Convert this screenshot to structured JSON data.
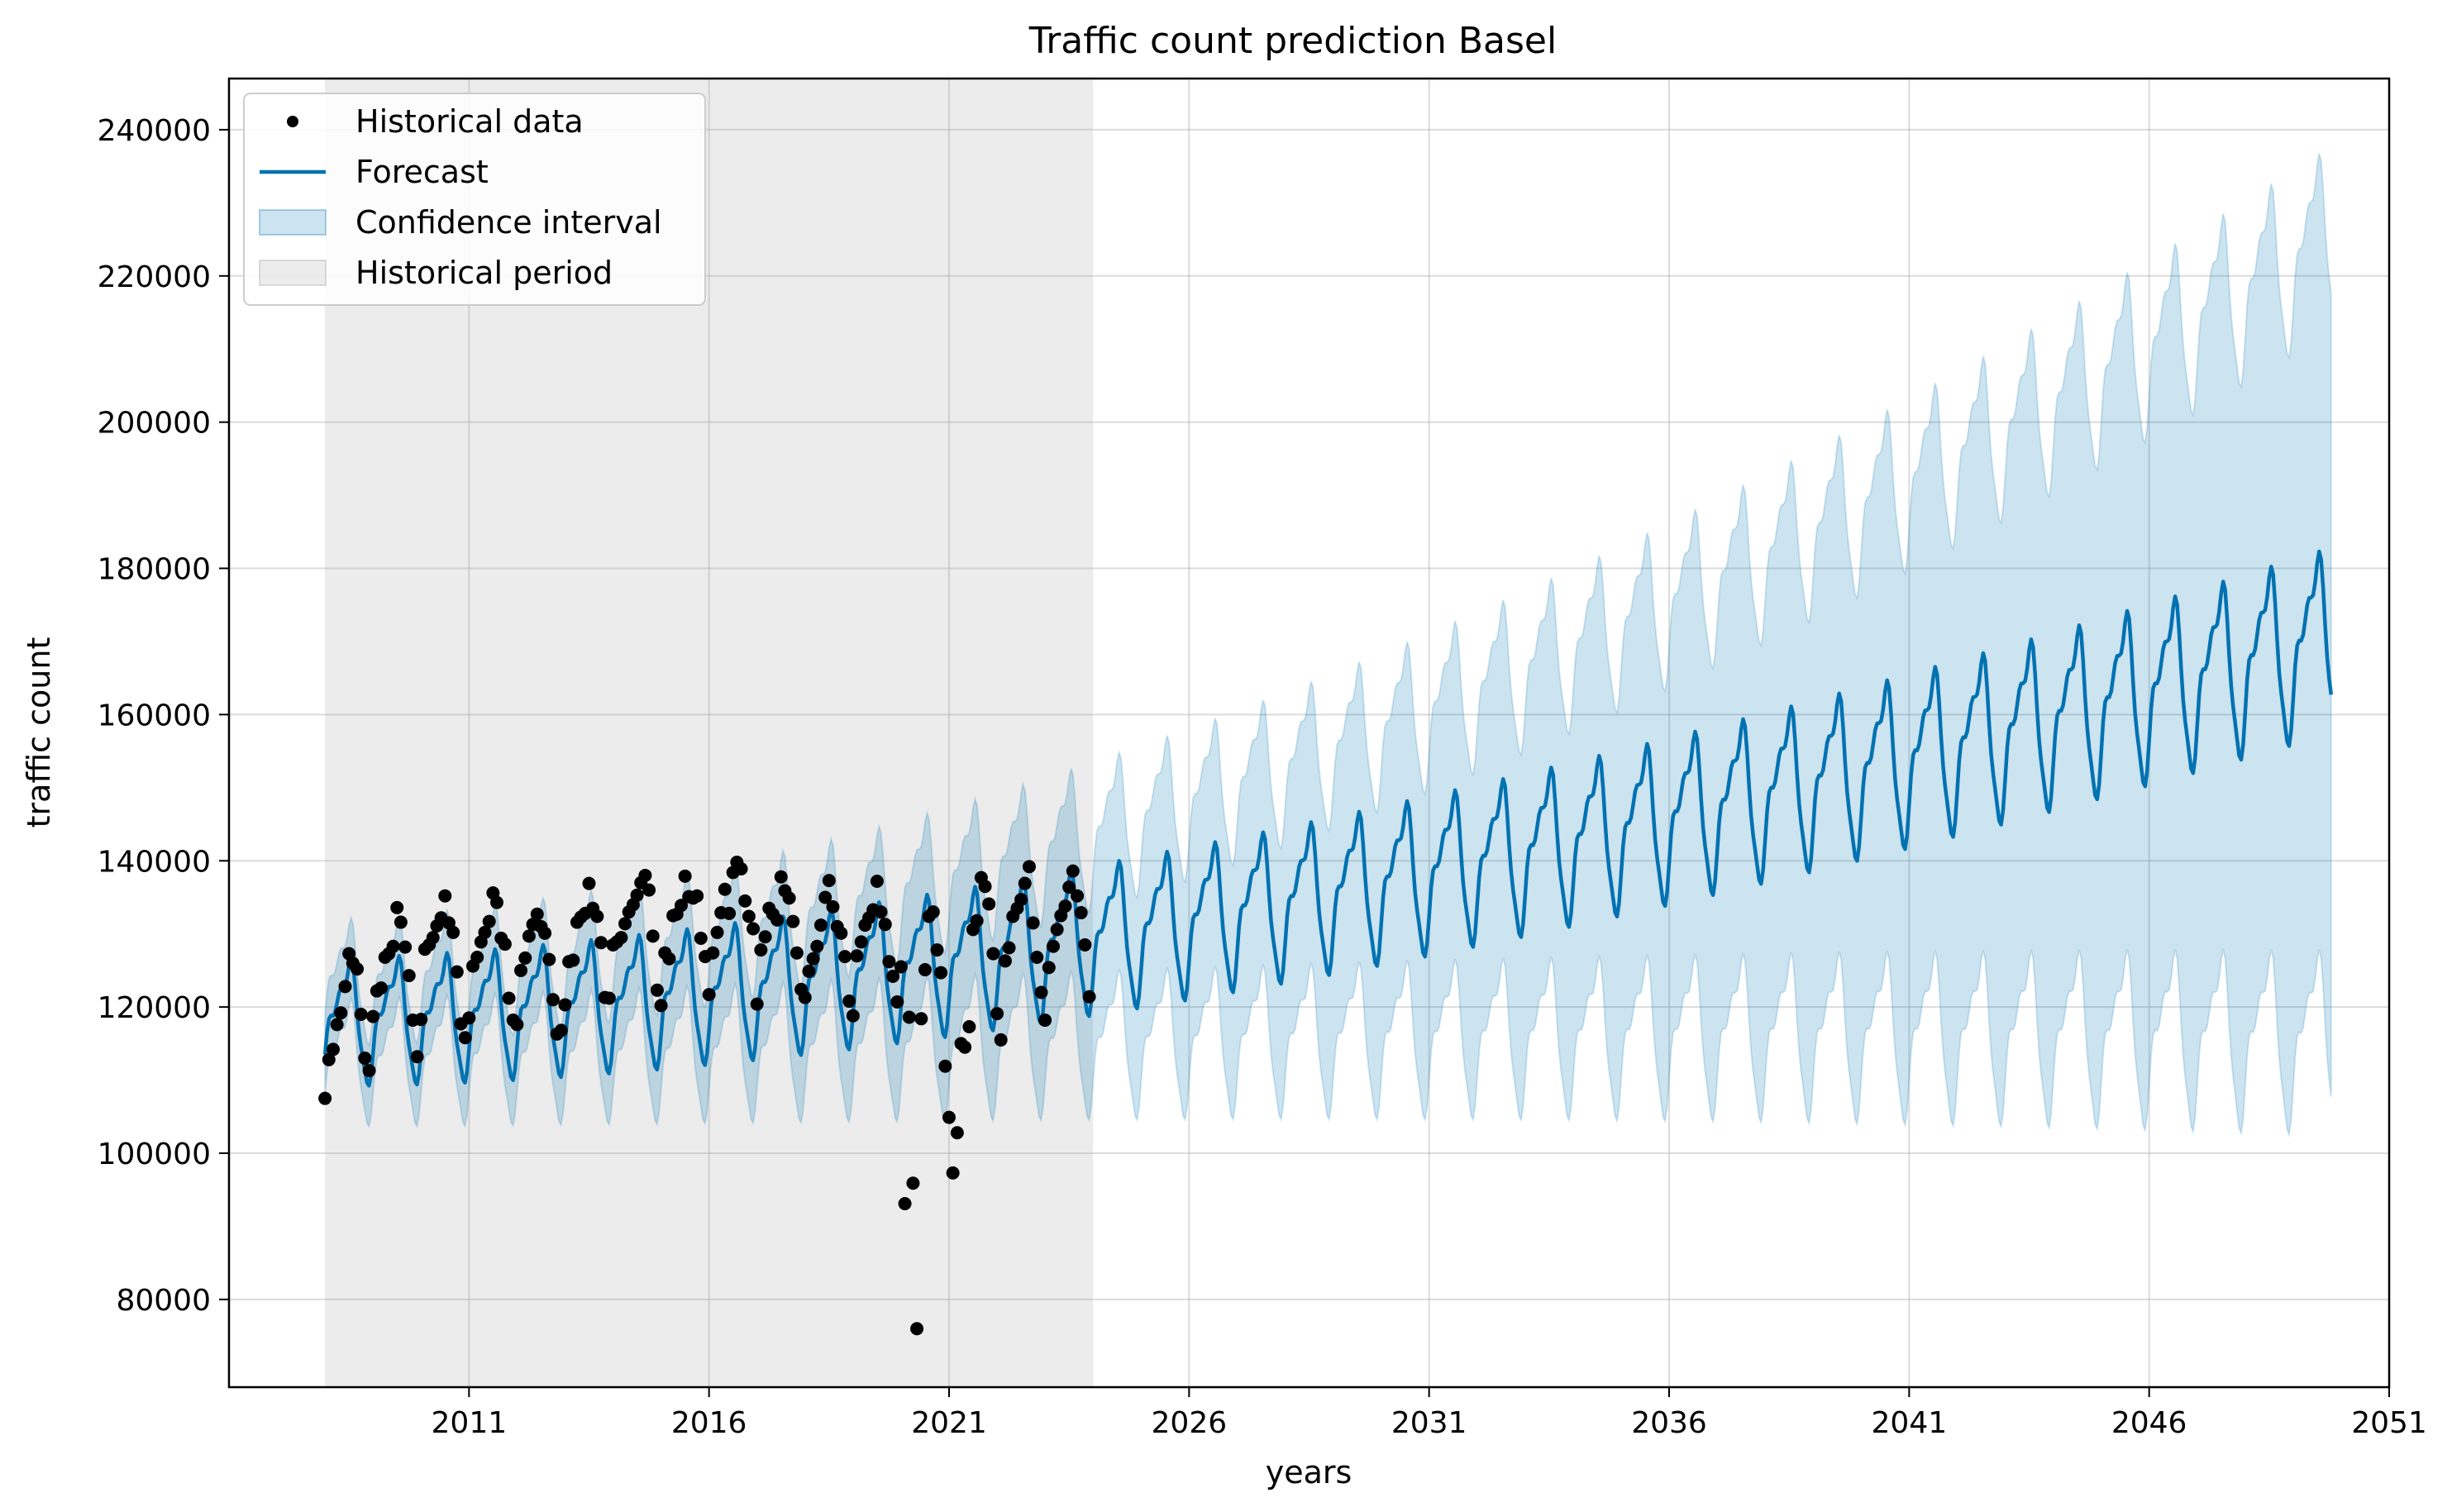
{
  "chart_data": {
    "type": "line",
    "title": "Traffic count prediction Basel",
    "xlabel": "years",
    "ylabel": "traffic count",
    "xlim": [
      2006.0,
      2051.0
    ],
    "ylim": [
      68000,
      247000
    ],
    "x_ticks": [
      2011,
      2016,
      2021,
      2026,
      2031,
      2036,
      2041,
      2046,
      2051
    ],
    "x_tick_labels": [
      "2011",
      "2016",
      "2021",
      "2026",
      "2031",
      "2036",
      "2041",
      "2046",
      "2051"
    ],
    "y_ticks": [
      80000,
      100000,
      120000,
      140000,
      160000,
      180000,
      200000,
      220000,
      240000
    ],
    "y_tick_labels": [
      "80000",
      "100000",
      "120000",
      "140000",
      "160000",
      "180000",
      "200000",
      "220000",
      "240000"
    ],
    "grid": true,
    "legend_position": "top-left",
    "historical_period": [
      2008.0,
      2024.0
    ],
    "forecast_range": [
      2008.0,
      2049.8
    ],
    "forecast_model": {
      "level_start": 118500,
      "level_end": 171000,
      "start_year": 2008.0,
      "end_year": 2049.8,
      "curve_exponent": 1.6,
      "seasonal_amplitude_start": 7500,
      "seasonal_amplitude_end": 11000,
      "interval_halfwidth_start": 5500,
      "interval_halfwidth_end": 55000
    },
    "series": [
      {
        "name": "Historical data",
        "kind": "scatter",
        "color": "#000000",
        "points": [
          [
            2008.0,
            107500
          ],
          [
            2008.08,
            112800
          ],
          [
            2008.17,
            114200
          ],
          [
            2008.25,
            117600
          ],
          [
            2008.33,
            119200
          ],
          [
            2008.42,
            122800
          ],
          [
            2008.5,
            127300
          ],
          [
            2008.58,
            126000
          ],
          [
            2008.67,
            125200
          ],
          [
            2008.75,
            119000
          ],
          [
            2008.83,
            113000
          ],
          [
            2008.92,
            111300
          ],
          [
            2009.0,
            118700
          ],
          [
            2009.08,
            122200
          ],
          [
            2009.17,
            122600
          ],
          [
            2009.25,
            126800
          ],
          [
            2009.33,
            127300
          ],
          [
            2009.42,
            128300
          ],
          [
            2009.5,
            133600
          ],
          [
            2009.58,
            131600
          ],
          [
            2009.67,
            128200
          ],
          [
            2009.75,
            124300
          ],
          [
            2009.83,
            118200
          ],
          [
            2009.92,
            113200
          ],
          [
            2010.0,
            118300
          ],
          [
            2010.08,
            127900
          ],
          [
            2010.17,
            128500
          ],
          [
            2010.25,
            129500
          ],
          [
            2010.33,
            131100
          ],
          [
            2010.42,
            132200
          ],
          [
            2010.5,
            135200
          ],
          [
            2010.58,
            131500
          ],
          [
            2010.67,
            130200
          ],
          [
            2010.75,
            124800
          ],
          [
            2010.83,
            117700
          ],
          [
            2010.92,
            115800
          ],
          [
            2011.0,
            118500
          ],
          [
            2011.08,
            125600
          ],
          [
            2011.17,
            126800
          ],
          [
            2011.25,
            128900
          ],
          [
            2011.33,
            130200
          ],
          [
            2011.42,
            131700
          ],
          [
            2011.5,
            135600
          ],
          [
            2011.58,
            134300
          ],
          [
            2011.67,
            129400
          ],
          [
            2011.75,
            128600
          ],
          [
            2011.83,
            121200
          ],
          [
            2011.92,
            118200
          ],
          [
            2012.0,
            117600
          ],
          [
            2012.08,
            125000
          ],
          [
            2012.17,
            126700
          ],
          [
            2012.25,
            129700
          ],
          [
            2012.33,
            131300
          ],
          [
            2012.42,
            132700
          ],
          [
            2012.5,
            131000
          ],
          [
            2012.58,
            130100
          ],
          [
            2012.67,
            126500
          ],
          [
            2012.75,
            121000
          ],
          [
            2012.83,
            116300
          ],
          [
            2012.92,
            116800
          ],
          [
            2013.0,
            120300
          ],
          [
            2013.08,
            126200
          ],
          [
            2013.17,
            126400
          ],
          [
            2013.25,
            131600
          ],
          [
            2013.33,
            132300
          ],
          [
            2013.42,
            132800
          ],
          [
            2013.5,
            136900
          ],
          [
            2013.58,
            133500
          ],
          [
            2013.67,
            132400
          ],
          [
            2013.75,
            128800
          ],
          [
            2013.83,
            121300
          ],
          [
            2013.92,
            121200
          ],
          [
            2014.0,
            128500
          ],
          [
            2014.08,
            128900
          ],
          [
            2014.17,
            129500
          ],
          [
            2014.25,
            131400
          ],
          [
            2014.33,
            133000
          ],
          [
            2014.42,
            134000
          ],
          [
            2014.5,
            135300
          ],
          [
            2014.58,
            137000
          ],
          [
            2014.67,
            138000
          ],
          [
            2014.75,
            136000
          ],
          [
            2014.83,
            129700
          ],
          [
            2014.92,
            122300
          ],
          [
            2015.0,
            120200
          ],
          [
            2015.08,
            127400
          ],
          [
            2015.17,
            126600
          ],
          [
            2015.25,
            132500
          ],
          [
            2015.33,
            132700
          ],
          [
            2015.42,
            133900
          ],
          [
            2015.5,
            137900
          ],
          [
            2015.58,
            135100
          ],
          [
            2015.67,
            134900
          ],
          [
            2015.75,
            135200
          ],
          [
            2015.83,
            129400
          ],
          [
            2015.92,
            126900
          ],
          [
            2016.0,
            121700
          ],
          [
            2016.08,
            127400
          ],
          [
            2016.17,
            130200
          ],
          [
            2016.25,
            132900
          ],
          [
            2016.33,
            136100
          ],
          [
            2016.42,
            132800
          ],
          [
            2016.5,
            138400
          ],
          [
            2016.58,
            139800
          ],
          [
            2016.67,
            138900
          ],
          [
            2016.75,
            134500
          ],
          [
            2016.83,
            132400
          ],
          [
            2016.92,
            130700
          ],
          [
            2017.0,
            120400
          ],
          [
            2017.08,
            127800
          ],
          [
            2017.17,
            129600
          ],
          [
            2017.25,
            133500
          ],
          [
            2017.33,
            132700
          ],
          [
            2017.42,
            131900
          ],
          [
            2017.5,
            137800
          ],
          [
            2017.58,
            135900
          ],
          [
            2017.67,
            134900
          ],
          [
            2017.75,
            131700
          ],
          [
            2017.83,
            127400
          ],
          [
            2017.92,
            122400
          ],
          [
            2018.0,
            121300
          ],
          [
            2018.08,
            124900
          ],
          [
            2018.17,
            126600
          ],
          [
            2018.25,
            128300
          ],
          [
            2018.33,
            131200
          ],
          [
            2018.42,
            135000
          ],
          [
            2018.5,
            137300
          ],
          [
            2018.58,
            133700
          ],
          [
            2018.67,
            131000
          ],
          [
            2018.75,
            130100
          ],
          [
            2018.83,
            126900
          ],
          [
            2018.92,
            120800
          ],
          [
            2019.0,
            118800
          ],
          [
            2019.08,
            127000
          ],
          [
            2019.17,
            128900
          ],
          [
            2019.25,
            131200
          ],
          [
            2019.33,
            132200
          ],
          [
            2019.42,
            133300
          ],
          [
            2019.5,
            137200
          ],
          [
            2019.58,
            133000
          ],
          [
            2019.67,
            131300
          ],
          [
            2019.75,
            126200
          ],
          [
            2019.83,
            124200
          ],
          [
            2019.92,
            120700
          ],
          [
            2020.0,
            125500
          ],
          [
            2020.08,
            93100
          ],
          [
            2020.17,
            118600
          ],
          [
            2020.25,
            95900
          ],
          [
            2020.33,
            76000
          ],
          [
            2020.42,
            118400
          ],
          [
            2020.5,
            125100
          ],
          [
            2020.58,
            132400
          ],
          [
            2020.67,
            133000
          ],
          [
            2020.75,
            127800
          ],
          [
            2020.83,
            124700
          ],
          [
            2020.92,
            111900
          ],
          [
            2021.0,
            104900
          ],
          [
            2021.08,
            97300
          ],
          [
            2021.17,
            102800
          ],
          [
            2021.25,
            115000
          ],
          [
            2021.33,
            114500
          ],
          [
            2021.42,
            117300
          ],
          [
            2021.5,
            130600
          ],
          [
            2021.58,
            131800
          ],
          [
            2021.67,
            137700
          ],
          [
            2021.75,
            136500
          ],
          [
            2021.83,
            134100
          ],
          [
            2021.92,
            127300
          ],
          [
            2022.0,
            119100
          ],
          [
            2022.08,
            115500
          ],
          [
            2022.17,
            126300
          ],
          [
            2022.25,
            128100
          ],
          [
            2022.33,
            132400
          ],
          [
            2022.42,
            133500
          ],
          [
            2022.5,
            134700
          ],
          [
            2022.58,
            136900
          ],
          [
            2022.67,
            139200
          ],
          [
            2022.75,
            131500
          ],
          [
            2022.83,
            126800
          ],
          [
            2022.92,
            122000
          ],
          [
            2023.0,
            118200
          ],
          [
            2023.08,
            125400
          ],
          [
            2023.17,
            128300
          ],
          [
            2023.25,
            130600
          ],
          [
            2023.33,
            132500
          ],
          [
            2023.42,
            133800
          ],
          [
            2023.5,
            136400
          ],
          [
            2023.58,
            138600
          ],
          [
            2023.67,
            135200
          ],
          [
            2023.75,
            132900
          ],
          [
            2023.83,
            128500
          ],
          [
            2023.92,
            121400
          ]
        ]
      },
      {
        "name": "Forecast",
        "kind": "line",
        "color": "#0072B2"
      },
      {
        "name": "Confidence interval",
        "kind": "band",
        "color": "#0072B2",
        "opacity": 0.2
      },
      {
        "name": "Historical period",
        "kind": "span",
        "color": "#808080",
        "opacity": 0.15
      }
    ]
  }
}
